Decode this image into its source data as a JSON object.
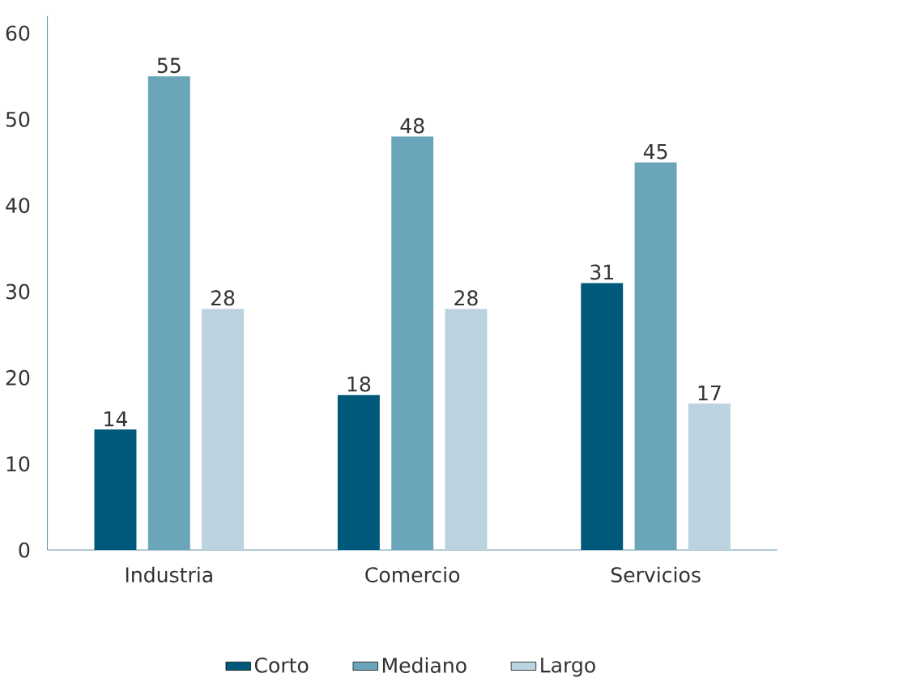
{
  "chart_data": {
    "type": "bar",
    "categories": [
      "Industria",
      "Comercio",
      "Servicios"
    ],
    "series": [
      {
        "name": "Corto",
        "color": "#00587a",
        "values": [
          14,
          18,
          31
        ]
      },
      {
        "name": "Mediano",
        "color": "#6aa5ba",
        "values": [
          55,
          48,
          45
        ]
      },
      {
        "name": "Largo",
        "color": "#bad3de",
        "values": [
          28,
          28,
          17
        ]
      }
    ],
    "ylim": [
      0,
      62
    ],
    "yticks": [
      0,
      10,
      20,
      30,
      40,
      50,
      60
    ],
    "data_labels": true,
    "legend": "bottom"
  }
}
